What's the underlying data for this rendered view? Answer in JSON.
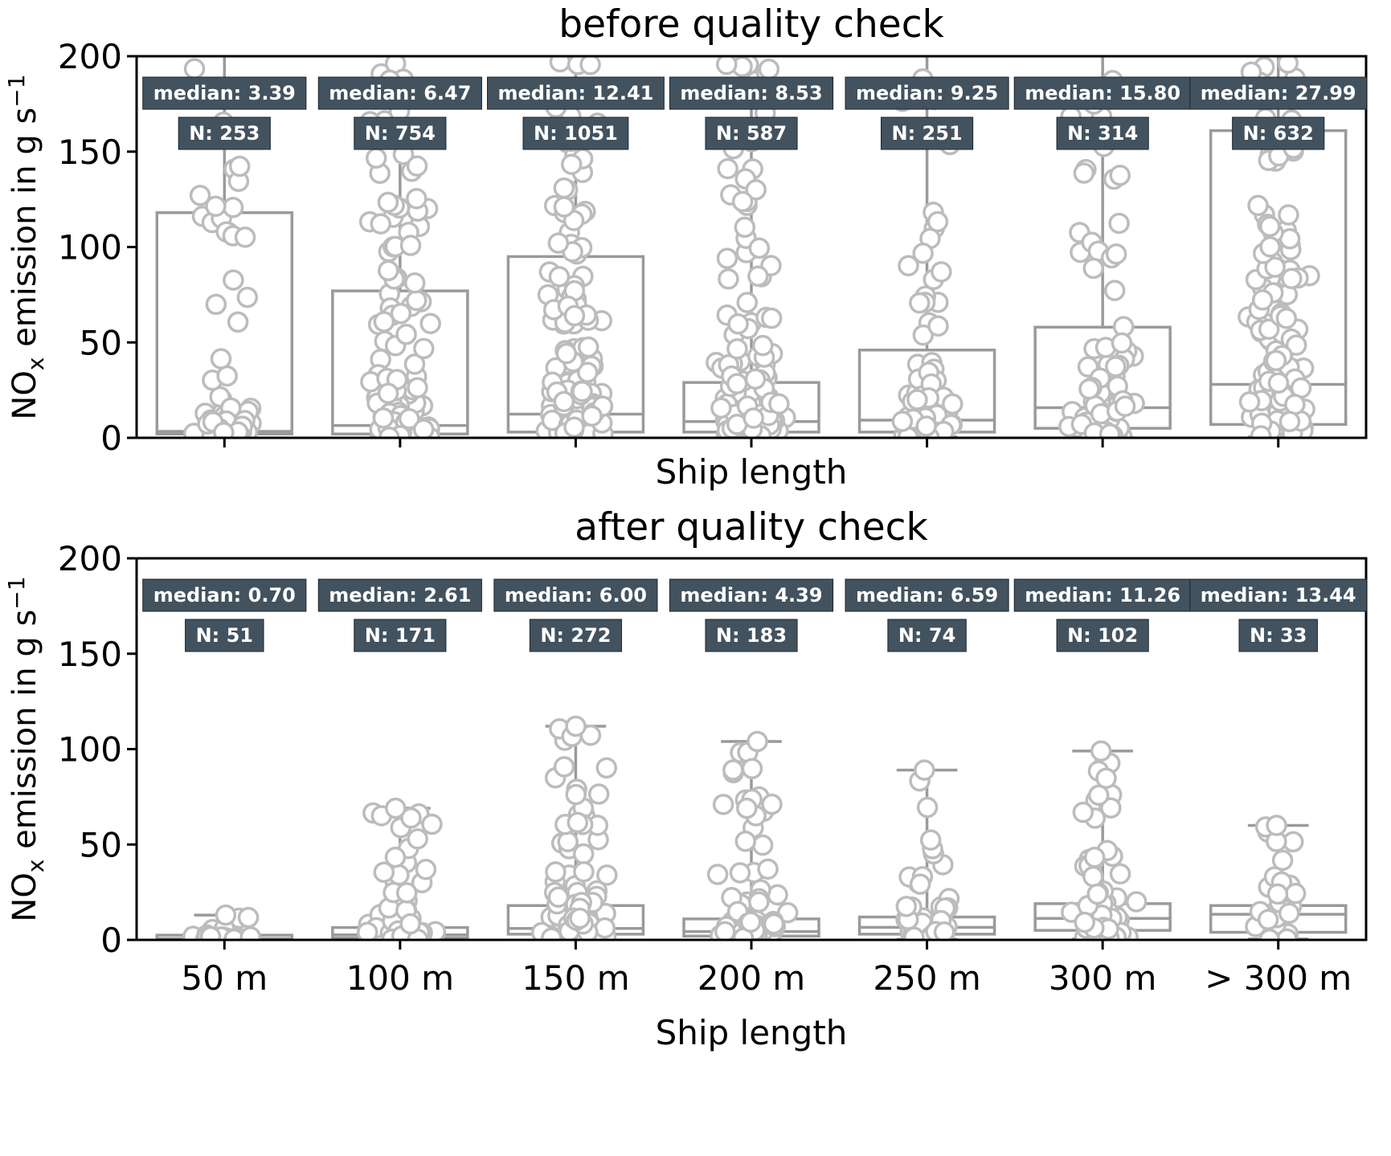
{
  "colors": {
    "background": "#ffffff",
    "annotation_bg": "#42525e",
    "annotation_border": "#1c262d",
    "annotation_text": "#ffffff",
    "box_line": "#9a9a9a",
    "point_stroke": "#bcbcbc",
    "point_fill": "#ffffff",
    "axis": "#000000"
  },
  "xlabel": "Ship length",
  "ylabel": "NOx emission in g s⁻¹",
  "ylabel_parts": [
    {
      "t": "NO"
    },
    {
      "t": "x",
      "v": "sub"
    },
    {
      "t": " emission in g s"
    },
    {
      "t": "−1",
      "v": "sup"
    }
  ],
  "categories": [
    "50 m",
    "100 m",
    "150 m",
    "200 m",
    "250 m",
    "300 m",
    "> 300 m"
  ],
  "chart_data": [
    {
      "type": "box",
      "title": "before quality check",
      "xlabel": "Ship length",
      "ylabel": "NOx emission in g s⁻¹",
      "ylim": [
        0,
        200
      ],
      "yticks": [
        0,
        50,
        100,
        150,
        200
      ],
      "categories": [
        "50 m",
        "100 m",
        "150 m",
        "200 m",
        "250 m",
        "300 m",
        "> 300 m"
      ],
      "boxes": [
        {
          "category": "50 m",
          "median": 3.39,
          "n": 253,
          "median_label": "median: 3.39",
          "n_label": "N: 253",
          "q1": 2,
          "q3": 118,
          "whisker_low": 0.5,
          "whisker_high": 200,
          "whisker_clipped": true
        },
        {
          "category": "100 m",
          "median": 6.47,
          "n": 754,
          "median_label": "median: 6.47",
          "n_label": "N: 754",
          "q1": 2,
          "q3": 77,
          "whisker_low": 0.5,
          "whisker_high": 200,
          "whisker_clipped": true
        },
        {
          "category": "150 m",
          "median": 12.41,
          "n": 1051,
          "median_label": "median: 12.41",
          "n_label": "N: 1051",
          "q1": 3,
          "q3": 95,
          "whisker_low": 0.5,
          "whisker_high": 200,
          "whisker_clipped": true
        },
        {
          "category": "200 m",
          "median": 8.53,
          "n": 587,
          "median_label": "median: 8.53",
          "n_label": "N: 587",
          "q1": 3,
          "q3": 29,
          "whisker_low": 0.5,
          "whisker_high": 200,
          "whisker_clipped": true
        },
        {
          "category": "250 m",
          "median": 9.25,
          "n": 251,
          "median_label": "median: 9.25",
          "n_label": "N: 251",
          "q1": 3,
          "q3": 46,
          "whisker_low": 0.5,
          "whisker_high": 200,
          "whisker_clipped": true
        },
        {
          "category": "300 m",
          "median": 15.8,
          "n": 314,
          "median_label": "median: 15.80",
          "n_label": "N: 314",
          "q1": 5,
          "q3": 58,
          "whisker_low": 0.5,
          "whisker_high": 200,
          "whisker_clipped": true
        },
        {
          "category": "> 300 m",
          "median": 27.99,
          "n": 632,
          "median_label": "median: 27.99",
          "n_label": "N: 632",
          "q1": 7,
          "q3": 161,
          "whisker_low": 0.5,
          "whisker_high": 200,
          "whisker_clipped": true
        }
      ]
    },
    {
      "type": "box",
      "title": "after quality check",
      "xlabel": "Ship length",
      "ylabel": "NOx emission in g s⁻¹",
      "ylim": [
        0,
        200
      ],
      "yticks": [
        0,
        50,
        100,
        150,
        200
      ],
      "categories": [
        "50 m",
        "100 m",
        "150 m",
        "200 m",
        "250 m",
        "300 m",
        "> 300 m"
      ],
      "boxes": [
        {
          "category": "50 m",
          "median": 0.7,
          "n": 51,
          "median_label": "median: 0.70",
          "n_label": "N: 51",
          "q1": 0.4,
          "q3": 2.5,
          "whisker_low": 0.1,
          "whisker_high": 13,
          "whisker_clipped": false
        },
        {
          "category": "100 m",
          "median": 2.61,
          "n": 171,
          "median_label": "median: 2.61",
          "n_label": "N: 171",
          "q1": 1,
          "q3": 6.5,
          "whisker_low": 0.1,
          "whisker_high": 69,
          "whisker_clipped": false
        },
        {
          "category": "150 m",
          "median": 6.0,
          "n": 272,
          "median_label": "median: 6.00",
          "n_label": "N: 272",
          "q1": 3,
          "q3": 18,
          "whisker_low": 0.3,
          "whisker_high": 112,
          "whisker_clipped": false
        },
        {
          "category": "200 m",
          "median": 4.39,
          "n": 183,
          "median_label": "median: 4.39",
          "n_label": "N: 183",
          "q1": 2,
          "q3": 11,
          "whisker_low": 0.3,
          "whisker_high": 104,
          "whisker_clipped": false
        },
        {
          "category": "250 m",
          "median": 6.59,
          "n": 74,
          "median_label": "median: 6.59",
          "n_label": "N: 74",
          "q1": 3,
          "q3": 12,
          "whisker_low": 0.3,
          "whisker_high": 89,
          "whisker_clipped": false
        },
        {
          "category": "300 m",
          "median": 11.26,
          "n": 102,
          "median_label": "median: 11.26",
          "n_label": "N: 102",
          "q1": 5,
          "q3": 19,
          "whisker_low": 0.5,
          "whisker_high": 99,
          "whisker_clipped": false
        },
        {
          "category": "> 300 m",
          "median": 13.44,
          "n": 33,
          "median_label": "median: 13.44",
          "n_label": "N: 33",
          "q1": 4,
          "q3": 18,
          "whisker_low": 0.5,
          "whisker_high": 60,
          "whisker_clipped": false
        }
      ]
    }
  ]
}
